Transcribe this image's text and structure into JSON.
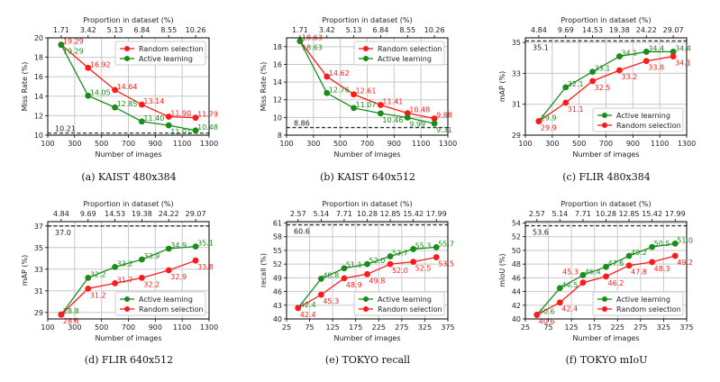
{
  "colors": {
    "random": "#ff1a1a",
    "active": "#1a8c1a",
    "baseline": "#333333",
    "grid": "#c8c8c8"
  },
  "chart_data": [
    {
      "type": "line",
      "id": "a",
      "caption": "(a) KAIST 480x384",
      "xlabel": "Number of images",
      "ylabel": "Miss Rate (%)",
      "top_xlabel": "Proportion in dataset (%)",
      "x": [
        200,
        400,
        600,
        800,
        1000,
        1200
      ],
      "top_ticks": [
        "1.71",
        "3.42",
        "5.13",
        "6.84",
        "8.55",
        "10.26"
      ],
      "xlim": [
        100,
        1300
      ],
      "xticks": [
        100,
        300,
        500,
        700,
        900,
        1100,
        1300
      ],
      "ylim": [
        10,
        20
      ],
      "yticks": [
        10,
        12,
        14,
        16,
        18,
        20
      ],
      "baseline": {
        "value": 10.21,
        "label": "10.21"
      },
      "legend": "top-right",
      "series": [
        {
          "key": "random",
          "name": "Random selection",
          "values": [
            19.29,
            16.92,
            14.64,
            13.14,
            11.9,
            11.79
          ],
          "labels": [
            "19.29",
            "16.92",
            "14.64",
            "13.14",
            "11.90",
            "11.79"
          ],
          "label_pos": "above"
        },
        {
          "key": "active",
          "name": "Active learning",
          "values": [
            19.29,
            14.05,
            12.85,
            11.4,
            11.01,
            10.48
          ],
          "labels": [
            "19.29",
            "14.05",
            "12.85",
            "11.40",
            "11.01",
            "10.48"
          ],
          "label_pos": "above"
        }
      ]
    },
    {
      "type": "line",
      "id": "b",
      "caption": "(b) KAIST 640x512",
      "xlabel": "Number of images",
      "ylabel": "Miss Rate (%)",
      "top_xlabel": "Proportion in dataset (%)",
      "x": [
        200,
        400,
        600,
        800,
        1000,
        1200
      ],
      "top_ticks": [
        "1.71",
        "3.42",
        "5.13",
        "6.84",
        "8.55",
        "10.26"
      ],
      "xlim": [
        100,
        1300
      ],
      "xticks": [
        100,
        300,
        500,
        700,
        900,
        1100,
        1300
      ],
      "ylim": [
        8,
        19
      ],
      "yticks": [
        8,
        10,
        12,
        14,
        16,
        18
      ],
      "baseline": {
        "value": 8.86,
        "label": "8.86"
      },
      "legend": "top-right",
      "series": [
        {
          "key": "random",
          "name": "Random selection",
          "values": [
            18.63,
            14.62,
            12.61,
            11.41,
            10.48,
            9.88
          ],
          "labels": [
            "18.63",
            "14.62",
            "12.61",
            "11.41",
            "10.48",
            "9.88"
          ],
          "label_pos": "above"
        },
        {
          "key": "active",
          "name": "Active learning",
          "values": [
            18.63,
            12.76,
            11.07,
            10.46,
            9.99,
            9.31
          ],
          "labels": [
            "18.63",
            "12.76",
            "11.07",
            "10.46",
            "9.99",
            "9.31"
          ],
          "label_pos": "above"
        }
      ]
    },
    {
      "type": "line",
      "id": "c",
      "caption": "(c) FLIR 480x384",
      "xlabel": "Number of images",
      "ylabel": "mAP (%)",
      "top_xlabel": "Proportion in dataset (%)",
      "x": [
        200,
        400,
        600,
        800,
        1000,
        1200
      ],
      "top_ticks": [
        "4.84",
        "9.69",
        "14.53",
        "19.38",
        "24.22",
        "29.07"
      ],
      "xlim": [
        100,
        1300
      ],
      "xticks": [
        100,
        300,
        500,
        700,
        900,
        1100,
        1300
      ],
      "ylim": [
        29,
        35.3
      ],
      "yticks": [
        29,
        31,
        33,
        35
      ],
      "baseline": {
        "value": 35.1,
        "label": "35.1"
      },
      "legend": "bottom-right",
      "series": [
        {
          "key": "active",
          "name": "Active learning",
          "values": [
            29.9,
            32.1,
            33.1,
            34.1,
            34.4,
            34.4
          ],
          "labels": [
            "29.9",
            "32.1",
            "33.1",
            "34.1",
            "34.4",
            "34.4"
          ],
          "label_pos": "above"
        },
        {
          "key": "random",
          "name": "Random selection",
          "values": [
            29.9,
            31.1,
            32.5,
            33.2,
            33.8,
            34.1
          ],
          "labels": [
            "29.9",
            "31.1",
            "32.5",
            "33.2",
            "33.8",
            "34.1"
          ],
          "label_pos": "below"
        }
      ]
    },
    {
      "type": "line",
      "id": "d",
      "caption": "(d) FLIR 640x512",
      "xlabel": "Number of images",
      "ylabel": "mAP (%)",
      "top_xlabel": "Proportion in dataset (%)",
      "x": [
        200,
        400,
        600,
        800,
        1000,
        1200
      ],
      "top_ticks": [
        "4.84",
        "9.69",
        "14.53",
        "19.38",
        "24.22",
        "29.07"
      ],
      "xlim": [
        100,
        1300
      ],
      "xticks": [
        100,
        300,
        500,
        700,
        900,
        1100,
        1300
      ],
      "ylim": [
        28.4,
        37.4
      ],
      "yticks": [
        29,
        31,
        33,
        35,
        37
      ],
      "baseline": {
        "value": 37.0,
        "label": "37.0"
      },
      "legend": "bottom-right",
      "series": [
        {
          "key": "active",
          "name": "Active learning",
          "values": [
            28.8,
            32.2,
            33.2,
            33.9,
            34.9,
            35.1
          ],
          "labels": [
            "28.8",
            "32.2",
            "33.2",
            "33.9",
            "34.9",
            "35.1"
          ],
          "label_pos": "above"
        },
        {
          "key": "random",
          "name": "Random selection",
          "values": [
            28.8,
            31.2,
            31.7,
            32.2,
            32.9,
            33.8
          ],
          "labels": [
            "28.8",
            "31.2",
            "31.7",
            "32.2",
            "32.9",
            "33.8"
          ],
          "label_pos": "below"
        }
      ]
    },
    {
      "type": "line",
      "id": "e",
      "caption": "(e) TOKYO recall",
      "xlabel": "Number of images",
      "ylabel": "recall (%)",
      "top_xlabel": "Proportion in dataset (%)",
      "x": [
        50,
        100,
        150,
        200,
        250,
        300,
        350
      ],
      "top_ticks": [
        "2.57",
        "5.14",
        "7.71",
        "10.28",
        "12.85",
        "15.42",
        "17.99"
      ],
      "xlim": [
        25,
        375
      ],
      "xticks": [
        25,
        75,
        125,
        175,
        225,
        275,
        325,
        375
      ],
      "ylim": [
        40,
        61.3
      ],
      "yticks": [
        40,
        43,
        46,
        49,
        52,
        55,
        58,
        61
      ],
      "baseline": {
        "value": 60.6,
        "label": "60.6"
      },
      "legend": "bottom-right",
      "series": [
        {
          "key": "active",
          "name": "Active learning",
          "values": [
            42.4,
            48.8,
            51.1,
            52.0,
            53.7,
            55.3,
            55.7
          ],
          "labels": [
            "42.4",
            "48.8",
            "51.1",
            "52.0",
            "53.7",
            "55.3",
            "55.7"
          ],
          "label_pos": "above"
        },
        {
          "key": "random",
          "name": "Random selection",
          "values": [
            42.4,
            45.3,
            48.9,
            49.8,
            52.0,
            52.5,
            53.5
          ],
          "labels": [
            "42.4",
            "45.3",
            "48.9",
            "49.8",
            "52.0",
            "52.5",
            "53.5"
          ],
          "label_pos": "below"
        }
      ]
    },
    {
      "type": "line",
      "id": "f",
      "caption": "(f) TOKYO mIoU",
      "xlabel": "Number of images",
      "ylabel": "mIoU (%)",
      "top_xlabel": "Proportion in dataset (%)",
      "x": [
        50,
        100,
        150,
        200,
        250,
        300,
        350
      ],
      "top_ticks": [
        "2.57",
        "5.14",
        "7.71",
        "10.28",
        "12.85",
        "15.42",
        "17.99"
      ],
      "xlim": [
        25,
        375
      ],
      "xticks": [
        25,
        75,
        125,
        175,
        225,
        275,
        325,
        375
      ],
      "ylim": [
        40,
        54.2
      ],
      "yticks": [
        40,
        42,
        44,
        46,
        48,
        50,
        52,
        54
      ],
      "baseline": {
        "value": 53.6,
        "label": "53.6"
      },
      "legend": "bottom-right",
      "series": [
        {
          "key": "active",
          "name": "Active learning",
          "values": [
            40.6,
            44.5,
            46.4,
            47.6,
            49.2,
            50.5,
            51.0
          ],
          "labels": [
            "40.6",
            "44.5",
            "46.4",
            "47.6",
            "49.2",
            "50.5",
            "51.0"
          ],
          "label_pos": "above"
        },
        {
          "key": "random",
          "name": "Random selection",
          "values": [
            40.6,
            42.4,
            45.3,
            46.2,
            47.8,
            48.3,
            49.2
          ],
          "labels": [
            "40.6",
            "42.4",
            "45.3",
            "46.2",
            "47.8",
            "48.3",
            "49.2"
          ],
          "label_pos": "below"
        }
      ]
    }
  ]
}
